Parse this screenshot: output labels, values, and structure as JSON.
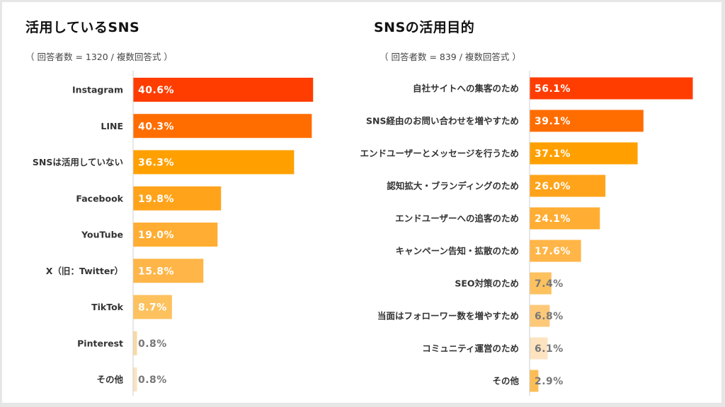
{
  "chart_data": [
    {
      "type": "bar",
      "orientation": "horizontal",
      "title": "活用しているSNS",
      "subtitle": "（ 回答者数 = 1320 / 複数回答式 ）",
      "categories": [
        "Instagram",
        "LINE",
        "SNSは活用していない",
        "Facebook",
        "YouTube",
        "X（旧：Twitter）",
        "TikTok",
        "Pinterest",
        "その他"
      ],
      "values": [
        40.6,
        40.3,
        36.3,
        19.8,
        19.0,
        15.8,
        8.7,
        0.8,
        0.8
      ],
      "value_labels": [
        "40.6%",
        "40.3%",
        "36.3%",
        "19.8%",
        "19.0%",
        "15.8%",
        "8.7%",
        "0.8%",
        "0.8%"
      ],
      "colors": [
        "#ff3d00",
        "#ff6d00",
        "#ffa000",
        "#ffa31a",
        "#ffad33",
        "#ffb547",
        "#fdc15e",
        "#f9d9a6",
        "#fbe3c2"
      ],
      "xlabel": "",
      "ylabel": "",
      "unit": "%",
      "grid": false,
      "legend": "none"
    },
    {
      "type": "bar",
      "orientation": "horizontal",
      "title": "SNSの活用目的",
      "subtitle": "（ 回答者数 = 839 / 複数回答式 ）",
      "categories": [
        "自社サイトへの集客のため",
        "SNS経由のお問い合わせを増やすため",
        "エンドユーザーとメッセージを行うため",
        "認知拡大・ブランディングのため",
        "エンドユーザーへの追客のため",
        "キャンペーン告知・拡散のため",
        "SEO対策のため",
        "当面はフォローワー数を増やすため",
        "コミュニティ運営のため",
        "その他"
      ],
      "values": [
        56.1,
        39.1,
        37.1,
        26.0,
        24.1,
        17.6,
        7.4,
        6.8,
        6.1,
        2.9
      ],
      "value_labels": [
        "56.1%",
        "39.1%",
        "37.1%",
        "26.0%",
        "24.1%",
        "17.6%",
        "7.4%",
        "6.8%",
        "6.1%",
        "2.9%"
      ],
      "colors": [
        "#ff3d00",
        "#ff6d00",
        "#ffa000",
        "#ffa31a",
        "#ffad33",
        "#ffb547",
        "#fdc15e",
        "#fdc979",
        "#fde3c0",
        "#fdbd55"
      ],
      "xlabel": "",
      "ylabel": "",
      "unit": "%",
      "grid": false,
      "legend": "none"
    }
  ],
  "label_colors": {
    "inside": "#ffffff",
    "outside": "#777777"
  }
}
